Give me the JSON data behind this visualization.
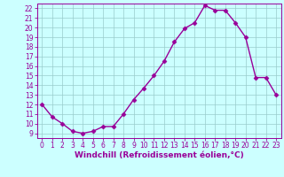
{
  "x": [
    0,
    1,
    2,
    3,
    4,
    5,
    6,
    7,
    8,
    9,
    10,
    11,
    12,
    13,
    14,
    15,
    16,
    17,
    18,
    19,
    20,
    21,
    22,
    23
  ],
  "y": [
    12,
    10.7,
    10,
    9.2,
    9,
    9.2,
    9.7,
    9.7,
    11,
    12.5,
    13.7,
    15,
    16.5,
    18.5,
    19.9,
    20.5,
    22.3,
    21.8,
    21.8,
    20.5,
    19,
    14.8,
    14.8,
    13
  ],
  "line_color": "#990099",
  "marker": "D",
  "marker_size": 2.5,
  "bg_color": "#ccffff",
  "grid_color": "#99cccc",
  "xlabel": "Windchill (Refroidissement éolien,°C)",
  "xlabel_color": "#990099",
  "tick_color": "#990099",
  "spine_color": "#990099",
  "ylim": [
    8.5,
    22.5
  ],
  "xlim": [
    -0.5,
    23.5
  ],
  "yticks": [
    9,
    10,
    11,
    12,
    13,
    14,
    15,
    16,
    17,
    18,
    19,
    20,
    21,
    22
  ],
  "xticks": [
    0,
    1,
    2,
    3,
    4,
    5,
    6,
    7,
    8,
    9,
    10,
    11,
    12,
    13,
    14,
    15,
    16,
    17,
    18,
    19,
    20,
    21,
    22,
    23
  ],
  "tick_fontsize": 5.5,
  "xlabel_fontsize": 6.5,
  "linewidth": 1.0
}
